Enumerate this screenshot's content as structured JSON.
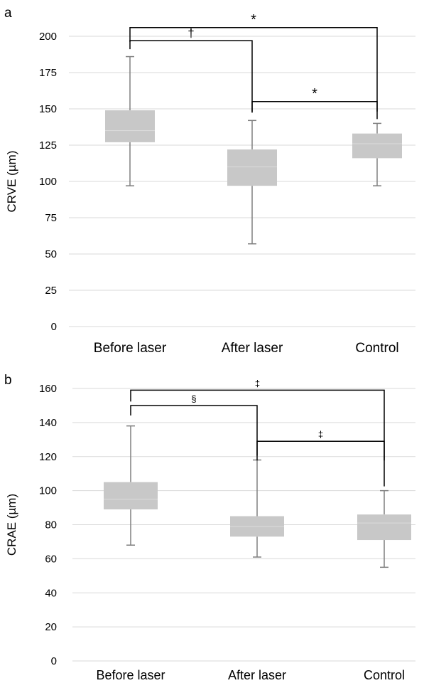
{
  "colors": {
    "box": "#c8c8c8",
    "median": "#dcdcdc",
    "whisker": "#7f7f7f",
    "grid": "#d9d9d9",
    "bracket": "#000000",
    "text": "#000000"
  },
  "chart_data": [
    {
      "panel_label": "a",
      "type": "boxplot",
      "ylabel": "CRVE (µm)",
      "ylim": [
        0,
        200
      ],
      "yticks": [
        0,
        25,
        50,
        75,
        100,
        125,
        150,
        175,
        200
      ],
      "grid": true,
      "categories": [
        "Before laser",
        "After laser",
        "Control"
      ],
      "boxes": [
        {
          "min": 97,
          "q1": 127,
          "median": 135,
          "q3": 149,
          "max": 186
        },
        {
          "min": 57,
          "q1": 97,
          "median": 110,
          "q3": 122,
          "max": 142
        },
        {
          "min": 97,
          "q1": 116,
          "median": 126,
          "q3": 133,
          "max": 140
        }
      ],
      "brackets": [
        {
          "from": 0,
          "to": 2,
          "level": 206,
          "label": "*"
        },
        {
          "from": 0,
          "to": 1,
          "level": 197,
          "label": "†"
        },
        {
          "from": 1,
          "to": 2,
          "level": 155,
          "label": "*"
        }
      ]
    },
    {
      "panel_label": "b",
      "type": "boxplot",
      "ylabel": "CRAE (µm)",
      "ylim": [
        0,
        160
      ],
      "yticks": [
        0,
        20,
        40,
        60,
        80,
        100,
        120,
        140,
        160
      ],
      "grid": true,
      "categories": [
        "Before laser",
        "After laser",
        "Control"
      ],
      "boxes": [
        {
          "min": 68,
          "q1": 89,
          "median": 95,
          "q3": 105,
          "max": 138
        },
        {
          "min": 61,
          "q1": 73,
          "median": 79,
          "q3": 85,
          "max": 118
        },
        {
          "min": 55,
          "q1": 71,
          "median": 81,
          "q3": 86,
          "max": 100
        }
      ],
      "brackets": [
        {
          "from": 0,
          "to": 2,
          "level": 159,
          "label": "‡"
        },
        {
          "from": 0,
          "to": 1,
          "level": 150,
          "label": "§"
        },
        {
          "from": 1,
          "to": 2,
          "level": 129,
          "label": "‡"
        }
      ]
    }
  ]
}
